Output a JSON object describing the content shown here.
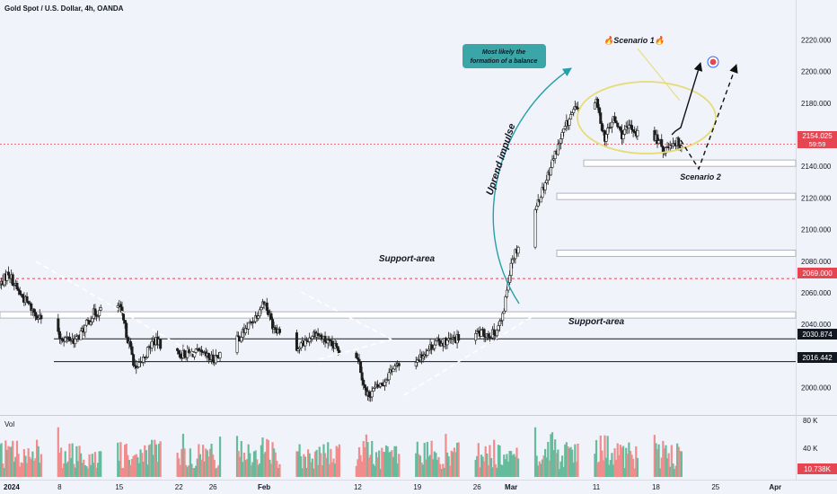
{
  "header": {
    "title": "Gold Spot / U.S. Dollar, 4h, OANDA"
  },
  "volume_pane": {
    "label": "Vol",
    "ticks": [
      "80 K",
      "40 K"
    ],
    "current_value": "10.738K"
  },
  "price_badges": {
    "last_price": "2154.025",
    "countdown": "59:59",
    "level_mid": "2069.000",
    "level_1": "2030.874",
    "level_2": "2016.442"
  },
  "annotations": {
    "callout": "Most likely the formation of a balance",
    "scenario1": "🔥Scenario 1🔥",
    "scenario2": "Scenario 2",
    "impulse": "Uprend impulse",
    "support_top": "Support-area",
    "support_bottom": "Support-area"
  },
  "colors": {
    "background": "#f0f3fa",
    "up": "#1e1e1e",
    "down": "#1e1e1e",
    "vol_up": "#66bb9c",
    "vol_down": "#f08c8c",
    "zone_fill": "#ffffff",
    "zone_stroke": "#b2b5be",
    "impulse_arrow": "#26a0a8",
    "ellipse": "#e6dc78",
    "last_price_badge": "#e64652",
    "callout_bg": "#3aa6a8"
  },
  "chart_data": {
    "type": "candlestick",
    "symbol": "XAUUSD",
    "interval": "4h",
    "source": "OANDA",
    "y_axis": {
      "ticks": [
        2000,
        2020,
        2040,
        2060,
        2080,
        2100,
        2120,
        2140,
        2160,
        2180,
        2200,
        2220
      ],
      "tick_labels": [
        "2000.000",
        "2020.000",
        "2040.000",
        "2060.000",
        "2080.000",
        "2100.000",
        "2120.000",
        "2140.000",
        "2160.000",
        "2180.000",
        "2200.000",
        "2220.000"
      ],
      "range": [
        1985,
        2235
      ]
    },
    "x_axis": {
      "labels": [
        {
          "label": "2024",
          "date": "2024-01-01"
        },
        {
          "label": "8",
          "date": "2024-01-08"
        },
        {
          "label": "15",
          "date": "2024-01-15"
        },
        {
          "label": "22",
          "date": "2024-01-22"
        },
        {
          "label": "26",
          "date": "2024-01-26"
        },
        {
          "label": "Feb",
          "date": "2024-02-01"
        },
        {
          "label": "12",
          "date": "2024-02-12"
        },
        {
          "label": "19",
          "date": "2024-02-19"
        },
        {
          "label": "26",
          "date": "2024-02-26"
        },
        {
          "label": "Mar",
          "date": "2024-03-01"
        },
        {
          "label": "11",
          "date": "2024-03-11"
        },
        {
          "label": "18",
          "date": "2024-03-18"
        },
        {
          "label": "25",
          "date": "2024-03-25"
        },
        {
          "label": "Apr",
          "date": "2024-04-01"
        }
      ],
      "range": [
        "2024-01-01",
        "2024-04-02"
      ]
    },
    "close_path": [
      {
        "date": "2024-01-01",
        "close": 2065
      },
      {
        "date": "2024-01-02",
        "close": 2073
      },
      {
        "date": "2024-01-03",
        "close": 2062
      },
      {
        "date": "2024-01-05",
        "close": 2048
      },
      {
        "date": "2024-01-08",
        "close": 2032
      },
      {
        "date": "2024-01-10",
        "close": 2030
      },
      {
        "date": "2024-01-12",
        "close": 2047
      },
      {
        "date": "2024-01-15",
        "close": 2052
      },
      {
        "date": "2024-01-17",
        "close": 2010
      },
      {
        "date": "2024-01-19",
        "close": 2030
      },
      {
        "date": "2024-01-22",
        "close": 2021
      },
      {
        "date": "2024-01-24",
        "close": 2022
      },
      {
        "date": "2024-01-26",
        "close": 2018
      },
      {
        "date": "2024-01-29",
        "close": 2031
      },
      {
        "date": "2024-01-31",
        "close": 2045
      },
      {
        "date": "2024-02-01",
        "close": 2055
      },
      {
        "date": "2024-02-02",
        "close": 2040
      },
      {
        "date": "2024-02-05",
        "close": 2025
      },
      {
        "date": "2024-02-07",
        "close": 2035
      },
      {
        "date": "2024-02-09",
        "close": 2026
      },
      {
        "date": "2024-02-12",
        "close": 2020
      },
      {
        "date": "2024-02-13",
        "close": 1995
      },
      {
        "date": "2024-02-15",
        "close": 2003
      },
      {
        "date": "2024-02-16",
        "close": 2012
      },
      {
        "date": "2024-02-19",
        "close": 2018
      },
      {
        "date": "2024-02-21",
        "close": 2028
      },
      {
        "date": "2024-02-23",
        "close": 2030
      },
      {
        "date": "2024-02-26",
        "close": 2034
      },
      {
        "date": "2024-02-28",
        "close": 2034
      },
      {
        "date": "2024-02-29",
        "close": 2044
      },
      {
        "date": "2024-03-01",
        "close": 2080
      },
      {
        "date": "2024-03-04",
        "close": 2115
      },
      {
        "date": "2024-03-05",
        "close": 2130
      },
      {
        "date": "2024-03-06",
        "close": 2145
      },
      {
        "date": "2024-03-07",
        "close": 2160
      },
      {
        "date": "2024-03-08",
        "close": 2172
      },
      {
        "date": "2024-03-10",
        "close": 2185
      },
      {
        "date": "2024-03-11",
        "close": 2180
      },
      {
        "date": "2024-03-12",
        "close": 2158
      },
      {
        "date": "2024-03-13",
        "close": 2170
      },
      {
        "date": "2024-03-14",
        "close": 2160
      },
      {
        "date": "2024-03-15",
        "close": 2165
      },
      {
        "date": "2024-03-17",
        "close": 2155
      },
      {
        "date": "2024-03-18",
        "close": 2158
      },
      {
        "date": "2024-03-19",
        "close": 2150
      },
      {
        "date": "2024-03-20",
        "close": 2156
      },
      {
        "date": "2024-03-21",
        "close": 2154
      }
    ],
    "support_zones": [
      {
        "from": 2140,
        "to": 2144
      },
      {
        "from": 2119,
        "to": 2123
      },
      {
        "from": 2083,
        "to": 2087
      },
      {
        "from": 2044,
        "to": 2048
      }
    ],
    "horizontal_levels": [
      2069.0,
      2030.874,
      2016.442
    ],
    "last_price": 2154.025
  }
}
